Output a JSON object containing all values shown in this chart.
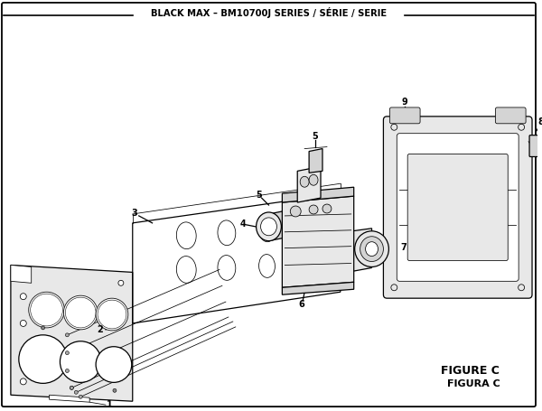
{
  "title": "BLACK MAX – BM10700J SERIES / SÉRIE / SERIE",
  "figure_label": "FIGURE C",
  "figura_label": "FIGURA C",
  "bg_color": "#ffffff",
  "border_color": "#000000",
  "line_color": "#000000",
  "fill_light": "#e8e8e8",
  "fill_mid": "#d4d4d4",
  "fill_dark": "#c0c0c0",
  "fig_width": 6.0,
  "fig_height": 4.55,
  "dpi": 100
}
